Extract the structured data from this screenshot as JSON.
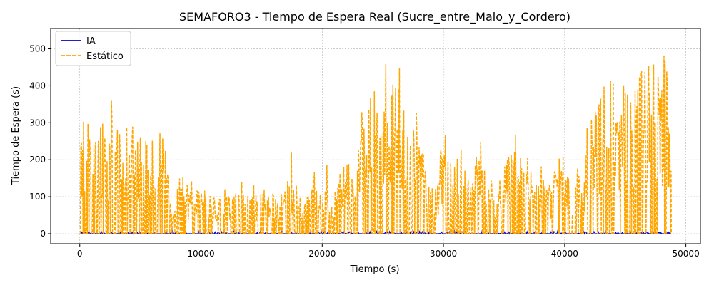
{
  "chart_data": {
    "type": "line",
    "title": "SEMAFORO3 - Tiempo de Espera Real (Sucre_entre_Malo_y_Cordero)",
    "xlabel": "Tiempo (s)",
    "ylabel": "Tiempo de Espera (s)",
    "xlim": [
      -2400,
      51200
    ],
    "ylim": [
      -27,
      555
    ],
    "xticks": [
      0,
      10000,
      20000,
      30000,
      40000,
      50000
    ],
    "xtick_labels": [
      "0",
      "10000",
      "20000",
      "30000",
      "40000",
      "50000"
    ],
    "yticks": [
      0,
      100,
      200,
      300,
      400,
      500
    ],
    "ytick_labels": [
      "0",
      "100",
      "200",
      "300",
      "400",
      "500"
    ],
    "grid": true,
    "legend_position": "upper-left",
    "x_end": 48800,
    "series": [
      {
        "name": "IA",
        "color": "#0000cc",
        "style": "solid",
        "typical_max": 10,
        "peak_x": [
          150,
          700,
          2600,
          4900,
          7600,
          9400,
          12700,
          16700,
          18700,
          19900,
          24500,
          30900,
          33200,
          35800,
          39400,
          44200,
          48600
        ],
        "peak_y": [
          8,
          5,
          5,
          8,
          10,
          4,
          8,
          6,
          7,
          8,
          6,
          10,
          7,
          6,
          7,
          3,
          4
        ]
      },
      {
        "name": "Estático",
        "color": "#ffa500",
        "style": "dashed",
        "envelope_x": [
          0,
          250,
          600,
          900,
          1200,
          1500,
          1800,
          2100,
          2400,
          2750,
          3100,
          3500,
          3900,
          4300,
          4700,
          5100,
          5500,
          5900,
          6300,
          6700,
          7000,
          7300,
          7700,
          8200,
          8700,
          9200,
          9700,
          10200,
          10800,
          11400,
          12000,
          12600,
          13200,
          13800,
          14400,
          15000,
          15600,
          16200,
          16800,
          17400,
          18000,
          18600,
          19200,
          19800,
          20400,
          21000,
          21600,
          22200,
          22800,
          23200,
          23700,
          24200,
          24700,
          25200,
          25700,
          26200,
          26600,
          27000,
          27500,
          28000,
          28500,
          29000,
          29500,
          30000,
          30500,
          31000,
          31500,
          32000,
          32500,
          33000,
          33500,
          34000,
          34500,
          35000,
          35500,
          36000,
          36500,
          37000,
          37500,
          38000,
          38500,
          39000,
          39500,
          40000,
          40500,
          41000,
          41500,
          42000,
          42500,
          43000,
          43500,
          44000,
          44500,
          45000,
          45500,
          46000,
          46500,
          47000,
          47500,
          48000,
          48400,
          48800
        ],
        "envelope_y": [
          325,
          360,
          290,
          345,
          240,
          300,
          320,
          275,
          290,
          418,
          330,
          280,
          316,
          305,
          250,
          290,
          265,
          255,
          305,
          265,
          265,
          140,
          110,
          205,
          150,
          150,
          125,
          135,
          110,
          90,
          145,
          125,
          160,
          110,
          140,
          120,
          115,
          100,
          120,
          248,
          110,
          95,
          190,
          110,
          200,
          110,
          190,
          205,
          120,
          350,
          440,
          390,
          375,
          465,
          420,
          470,
          475,
          410,
          360,
          300,
          200,
          180,
          150,
          330,
          200,
          190,
          240,
          150,
          160,
          320,
          210,
          150,
          130,
          190,
          250,
          270,
          180,
          210,
          150,
          200,
          170,
          160,
          210,
          240,
          120,
          200,
          110,
          380,
          330,
          390,
          420,
          420,
          460,
          430,
          495,
          460,
          440,
          470,
          460,
          440,
          525,
          310
        ]
      }
    ]
  }
}
